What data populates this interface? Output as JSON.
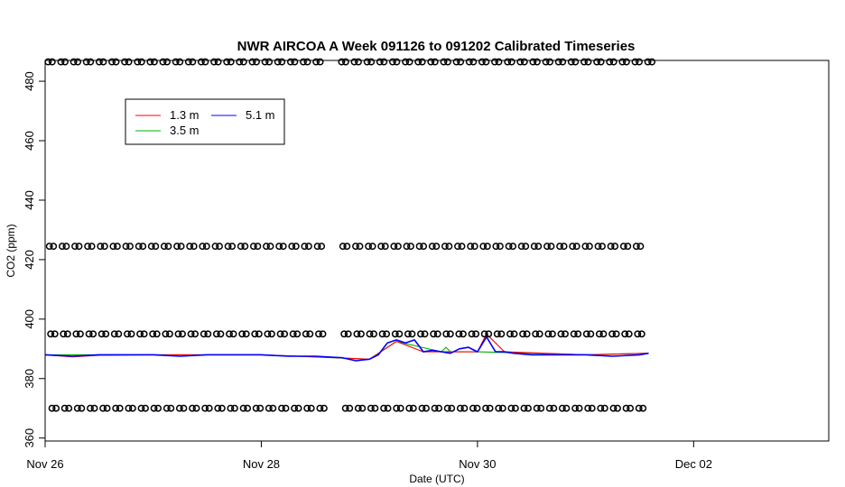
{
  "chart_data": {
    "type": "line",
    "title": "NWR AIRCOA A  Week 091126 to 091202  Calibrated Timeseries",
    "xlabel": "Date (UTC)",
    "ylabel": "CO2 (ppm)",
    "xlim": [
      "2009-11-26T00:00",
      "2009-12-03T06:00"
    ],
    "ylim": [
      359,
      487
    ],
    "x_ticks": [
      {
        "value": "2009-11-26",
        "label": "Nov 26"
      },
      {
        "value": "2009-11-28",
        "label": "Nov 28"
      },
      {
        "value": "2009-11-30",
        "label": "Nov 30"
      },
      {
        "value": "2009-12-02",
        "label": "Dec 02"
      }
    ],
    "y_ticks": [
      360,
      380,
      400,
      420,
      440,
      460,
      480
    ],
    "grid": false,
    "legend": {
      "position": "top-left",
      "entries": [
        {
          "name": "1.3 m",
          "color": "#ff0000"
        },
        {
          "name": "5.1 m",
          "color": "#0000ff"
        },
        {
          "name": "3.5 m",
          "color": "#00b000"
        }
      ]
    },
    "series": [
      {
        "name": "5.1 m",
        "color": "#0000ff",
        "x": [
          "2009-11-26T00:00",
          "2009-11-26T06:00",
          "2009-11-26T12:00",
          "2009-11-26T18:00",
          "2009-11-27T00:00",
          "2009-11-27T06:00",
          "2009-11-27T12:00",
          "2009-11-27T18:00",
          "2009-11-28T00:00",
          "2009-11-28T06:00",
          "2009-11-28T12:00",
          "2009-11-28T18:00",
          "2009-11-28T21:00",
          "2009-11-29T00:00",
          "2009-11-29T02:00",
          "2009-11-29T04:00",
          "2009-11-29T06:00",
          "2009-11-29T08:00",
          "2009-11-29T10:00",
          "2009-11-29T12:00",
          "2009-11-29T14:00",
          "2009-11-29T16:00",
          "2009-11-29T18:00",
          "2009-11-29T20:00",
          "2009-11-29T22:00",
          "2009-11-30T00:00",
          "2009-11-30T02:00",
          "2009-11-30T04:00",
          "2009-11-30T06:00",
          "2009-11-30T08:00",
          "2009-11-30T12:00",
          "2009-11-30T18:00",
          "2009-12-01T00:00",
          "2009-12-01T06:00",
          "2009-12-01T12:00",
          "2009-12-01T14:00"
        ],
        "values": [
          388,
          387.5,
          388,
          388,
          388,
          387.5,
          388,
          388,
          388,
          387.5,
          387.5,
          387,
          386,
          386.5,
          388,
          392,
          393,
          392,
          393,
          389,
          389.5,
          389,
          388.5,
          390,
          390.5,
          389,
          394,
          389,
          389,
          388.5,
          388,
          388,
          388,
          387.5,
          388,
          388.5
        ]
      },
      {
        "name": "1.3 m",
        "color": "#ff0000",
        "x": [
          "2009-11-26T00:00",
          "2009-11-26T06:00",
          "2009-11-26T12:00",
          "2009-11-27T00:00",
          "2009-11-28T00:00",
          "2009-11-28T12:00",
          "2009-11-29T00:00",
          "2009-11-29T06:00",
          "2009-11-29T12:00",
          "2009-11-30T00:00",
          "2009-11-30T02:00",
          "2009-11-30T06:00",
          "2009-12-01T00:00",
          "2009-12-01T14:00"
        ],
        "values": [
          388,
          387.3,
          387.8,
          388,
          388,
          387.3,
          386.5,
          392.5,
          389,
          389,
          395,
          389,
          388,
          388.5
        ]
      },
      {
        "name": "3.5 m",
        "color": "#00b000",
        "x": [
          "2009-11-26T00:00",
          "2009-11-27T00:00",
          "2009-11-28T00:00",
          "2009-11-29T00:00",
          "2009-11-29T06:00",
          "2009-11-29T16:00",
          "2009-11-29T17:00",
          "2009-11-29T18:00",
          "2009-11-30T00:00",
          "2009-12-01T00:00",
          "2009-12-01T14:00"
        ],
        "values": [
          388,
          388,
          388,
          386.5,
          392.5,
          389,
          390.5,
          389,
          389,
          388,
          388.5
        ]
      }
    ],
    "calibration_points": {
      "marker": "open circle",
      "gap": [
        "2009-11-28T14:30",
        "2009-11-28T16:30"
      ],
      "start": "2009-11-26T00:40",
      "end": "2009-12-01T14:00",
      "interval_minutes": 170,
      "levels": [
        486.5,
        424.5,
        395,
        370
      ]
    }
  }
}
